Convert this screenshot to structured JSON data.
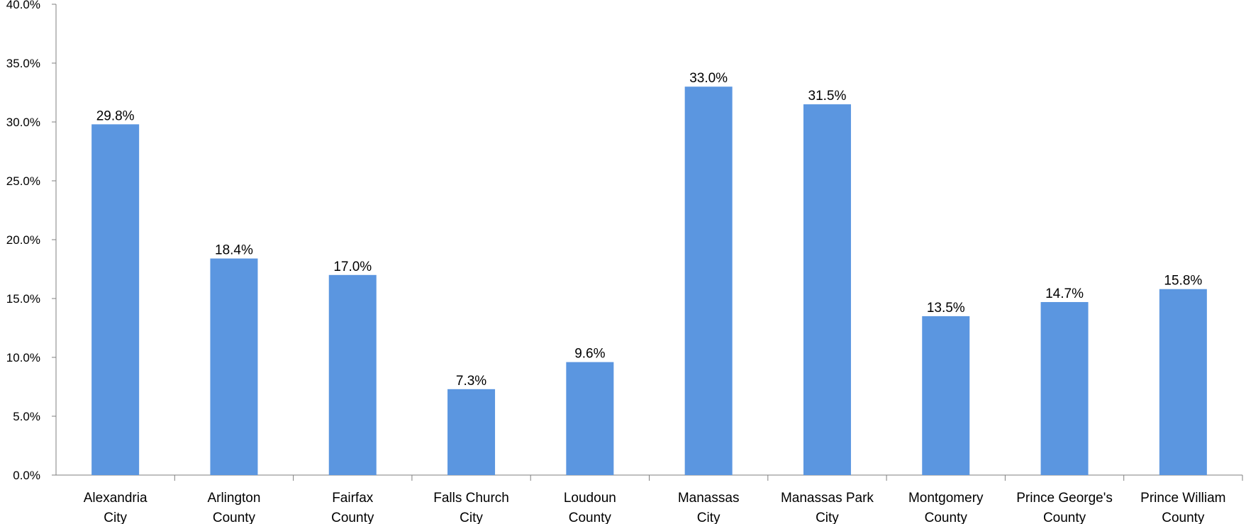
{
  "chart_data": {
    "type": "bar",
    "categories": [
      [
        "Alexandria",
        "City"
      ],
      [
        "Arlington",
        "County"
      ],
      [
        "Fairfax",
        "County"
      ],
      [
        "Falls Church",
        "City"
      ],
      [
        "Loudoun",
        "County"
      ],
      [
        "Manassas",
        "City"
      ],
      [
        "Manassas Park",
        "City"
      ],
      [
        "Montgomery",
        "County"
      ],
      [
        "Prince George's",
        "County"
      ],
      [
        "Prince William",
        "County"
      ]
    ],
    "values": [
      29.8,
      18.4,
      17.0,
      7.3,
      9.6,
      33.0,
      31.5,
      13.5,
      14.7,
      15.8
    ],
    "data_labels": [
      "29.8%",
      "18.4%",
      "17.0%",
      "7.3%",
      "9.6%",
      "33.0%",
      "31.5%",
      "13.5%",
      "14.7%",
      "15.8%"
    ],
    "y_ticks": [
      "0.0%",
      "5.0%",
      "10.0%",
      "15.0%",
      "20.0%",
      "25.0%",
      "30.0%",
      "35.0%",
      "40.0%"
    ],
    "ylim": [
      0,
      40
    ],
    "grid": false,
    "bar_color": "#5b96e0",
    "axis_color": "#7f7f7f"
  }
}
